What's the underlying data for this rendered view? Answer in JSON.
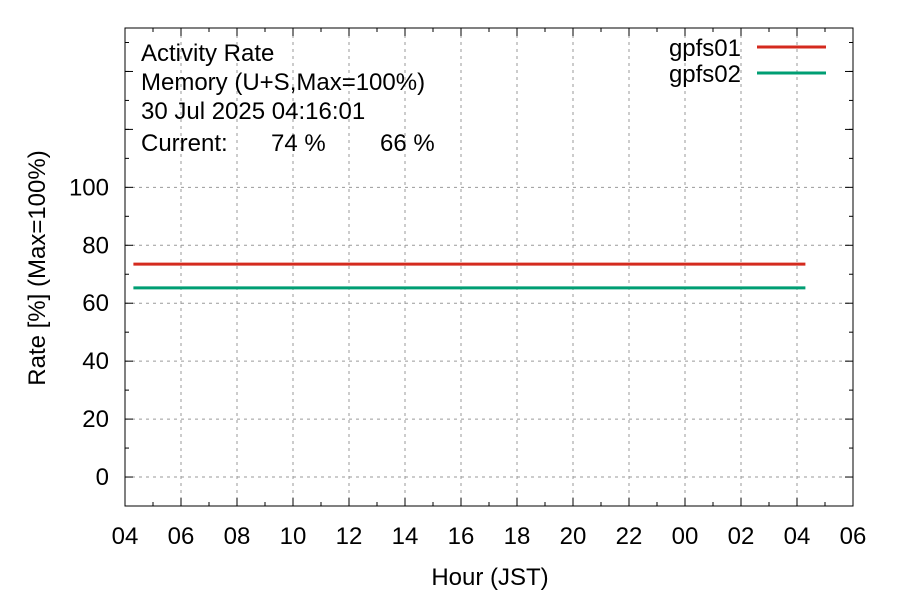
{
  "chart_data": {
    "type": "line",
    "title_lines": [
      "Activity Rate",
      "Memory (U+S,Max=100%)",
      "30 Jul 2025 04:16:01"
    ],
    "current_label": "Current:",
    "current_values": [
      {
        "text": "74 %",
        "color": "#d42a1e"
      },
      {
        "text": "66 %",
        "color": "#009e73"
      }
    ],
    "xlabel": "Hour (JST)",
    "ylabel": "Rate [%]  (Max=100%)",
    "x_ticks": [
      "04",
      "06",
      "08",
      "10",
      "12",
      "14",
      "16",
      "18",
      "20",
      "22",
      "00",
      "02",
      "04",
      "06"
    ],
    "xlim_hours": [
      0,
      26
    ],
    "y_ticks": [
      0,
      20,
      40,
      60,
      80,
      100
    ],
    "ylim": [
      -10,
      155
    ],
    "grid": true,
    "legend_position": "top-right",
    "series": [
      {
        "name": "gpfs01",
        "color": "#d42a1e",
        "x_hours": [
          0.3,
          24.3
        ],
        "y": [
          73.5,
          73.5
        ]
      },
      {
        "name": "gpfs02",
        "color": "#009e73",
        "x_hours": [
          0.3,
          24.3
        ],
        "y": [
          65.3,
          65.3
        ]
      }
    ]
  }
}
